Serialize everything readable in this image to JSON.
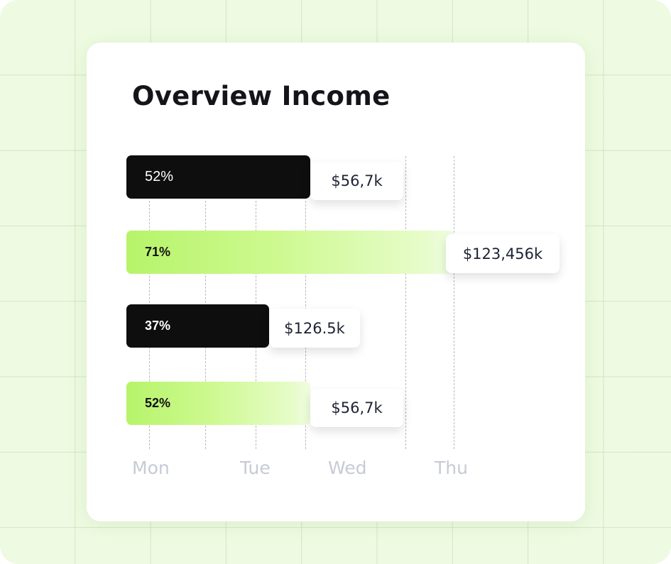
{
  "chart_data": {
    "type": "bar",
    "orientation": "horizontal",
    "title": "Overview Income",
    "x_tick_labels": [
      "Mon",
      "Tue",
      "Wed",
      "Thu"
    ],
    "bars": [
      {
        "percent_label": "52%",
        "value_label": "$56,7k",
        "color": "#0e0e0e"
      },
      {
        "percent_label": "71%",
        "value_label": "$123,456k",
        "color": "#b6f46a"
      },
      {
        "percent_label": "37%",
        "value_label": "$126.5k",
        "color": "#0e0e0e"
      },
      {
        "percent_label": "52%",
        "value_label": "$56,7k",
        "color": "#b6f46a"
      }
    ],
    "grid": "dashed vertical"
  }
}
